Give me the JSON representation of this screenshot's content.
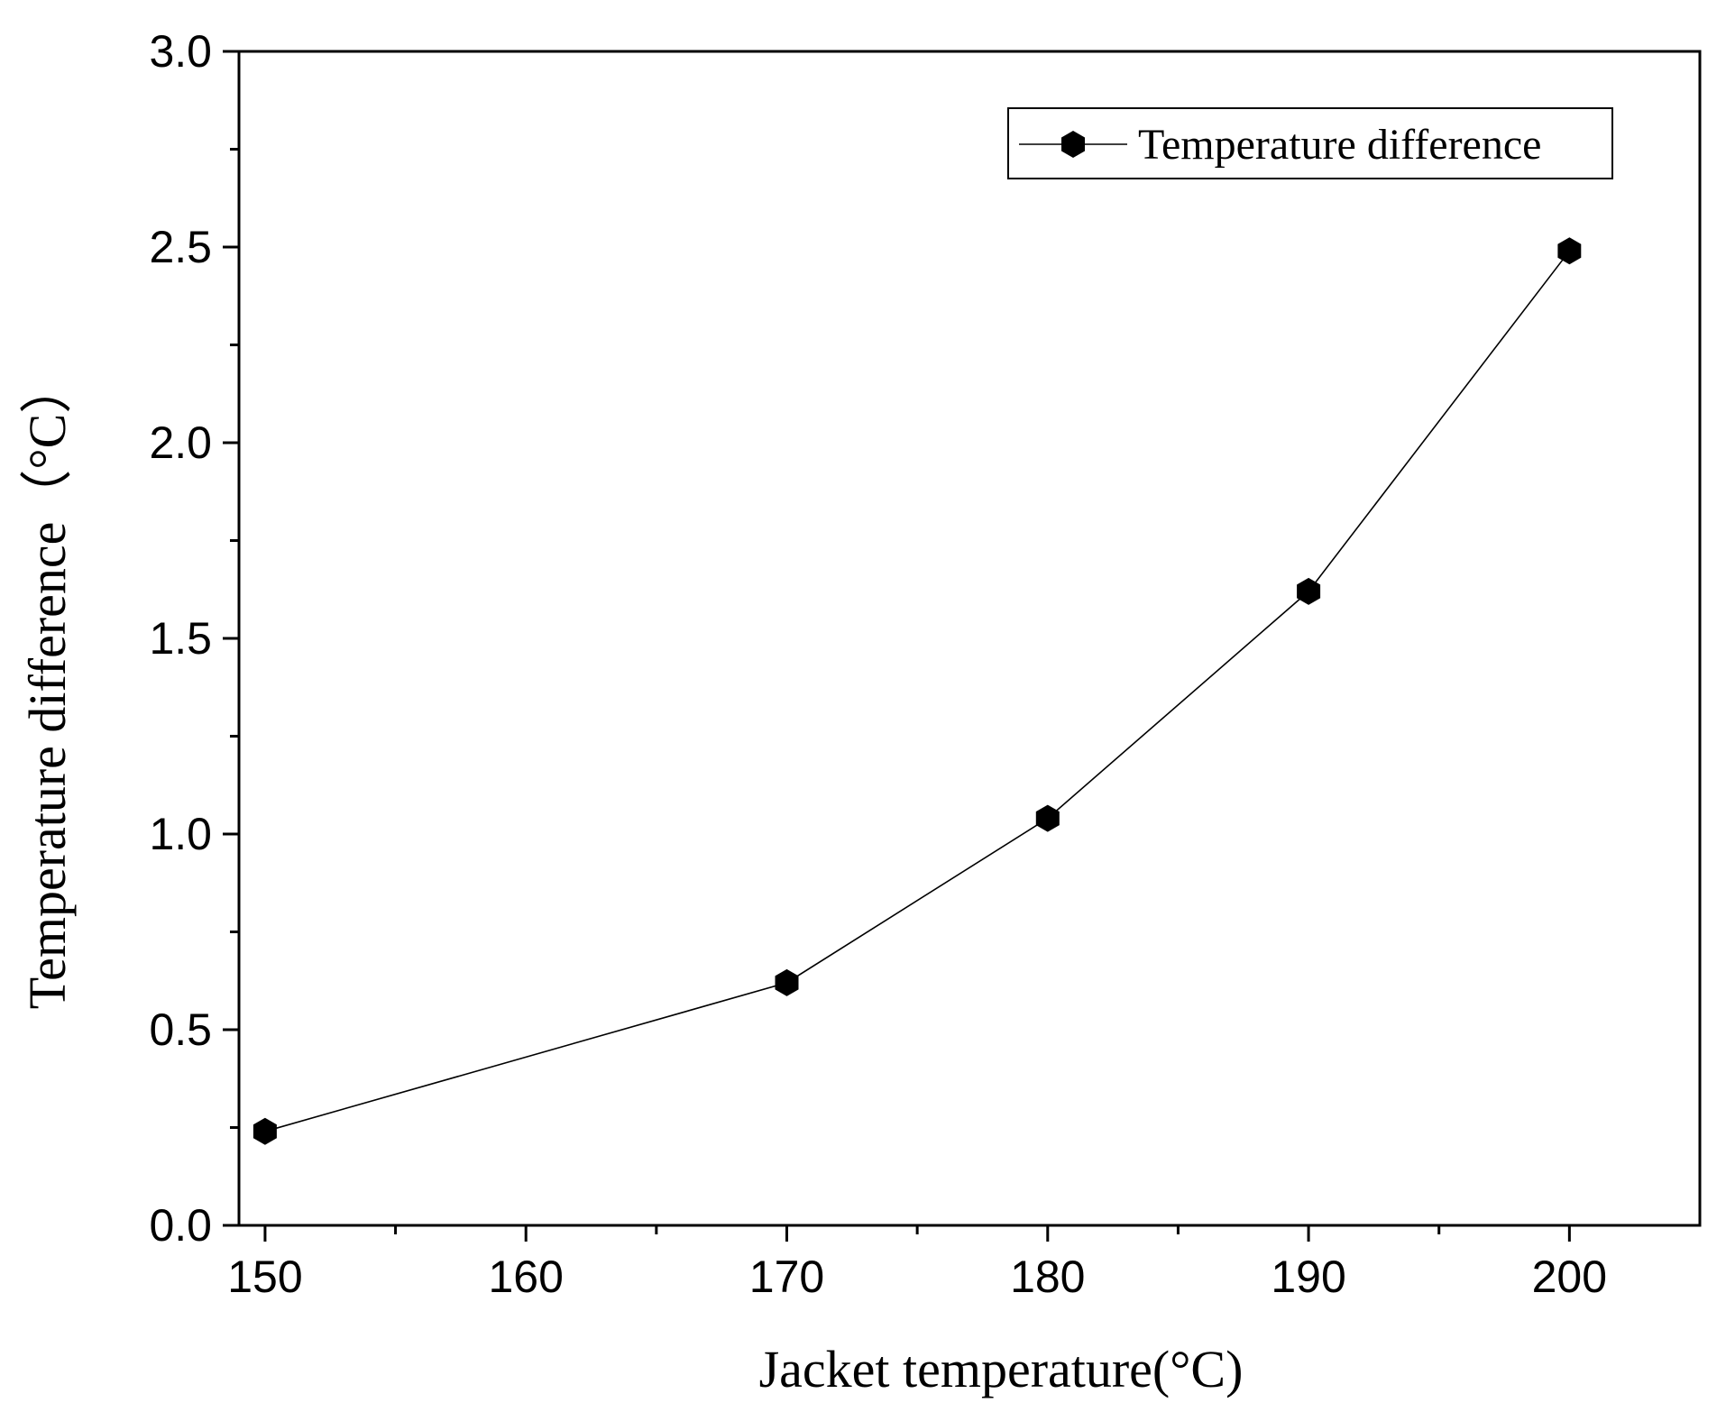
{
  "chart_data": {
    "type": "line",
    "title": "",
    "xlabel": "Jacket temperature(°C)",
    "ylabel": "Temperature difference（°C）",
    "xlim": [
      149,
      205
    ],
    "ylim": [
      0,
      3.0
    ],
    "x_ticks": [
      150,
      160,
      170,
      180,
      190,
      200
    ],
    "x_tick_labels": [
      "150",
      "160",
      "170",
      "180",
      "190",
      "200"
    ],
    "x_minor_ticks": [
      155,
      165,
      175,
      185,
      195
    ],
    "y_ticks": [
      0,
      0.5,
      1.0,
      1.5,
      2.0,
      2.5,
      3.0
    ],
    "y_tick_labels": [
      "0.0",
      "0.5",
      "1.0",
      "1.5",
      "2.0",
      "2.5",
      "3.0"
    ],
    "y_minor_ticks": [
      0.25,
      0.75,
      1.25,
      1.75,
      2.25,
      2.75
    ],
    "grid": false,
    "legend_position": "top-right",
    "series": [
      {
        "name": "Temperature difference",
        "marker": "hexagon",
        "color": "#000000",
        "x": [
          150,
          170,
          180,
          190,
          200
        ],
        "y": [
          0.24,
          0.62,
          1.04,
          1.62,
          2.49
        ]
      }
    ]
  }
}
